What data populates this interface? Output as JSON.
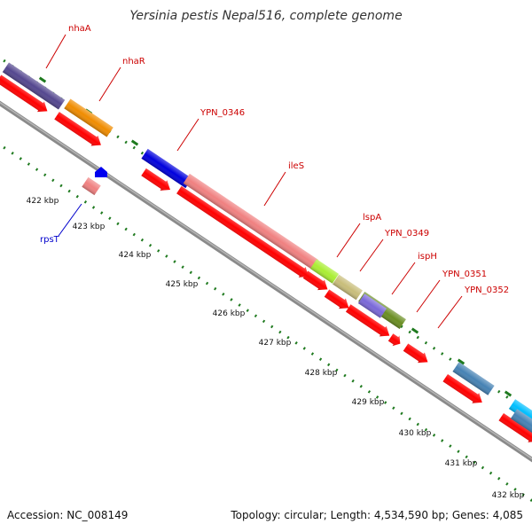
{
  "title": "Yersinia pestis Nepal516, complete genome",
  "accession": "Accession: NC_008149",
  "topology": "Topology: circular; Length: 4,534,590 bp; Genes: 4,085",
  "colors": {
    "backbone": "#8a8a8a",
    "dots": "#1f7a1f",
    "cds": "#ff0000",
    "label_top": "#cc0000",
    "label_bottom": "#0000cc"
  },
  "kbp_labels": [
    "422 kbp",
    "423 kbp",
    "424 kbp",
    "425 kbp",
    "426 kbp",
    "427 kbp",
    "428 kbp",
    "429 kbp",
    "430 kbp",
    "431 kbp",
    "432 kbp"
  ],
  "genes": [
    {
      "name": "nhaA",
      "color": "#54478f"
    },
    {
      "name": "nhaR",
      "color": "#f08c00"
    },
    {
      "name": "YPN_0346",
      "color": "#0000dd"
    },
    {
      "name": "ileS",
      "color": "#f08080"
    },
    {
      "name": "lspA",
      "color": "#aaee33"
    },
    {
      "name": "YPN_0349",
      "color": "#c8bd7a"
    },
    {
      "name": "ispH",
      "color": "#6a8e23"
    },
    {
      "name": "YPN_0351",
      "color": "#7a68d8"
    },
    {
      "name": "YPN_0352",
      "color": "#ff0000"
    },
    {
      "name": "rpsT",
      "color": "#f08080"
    }
  ],
  "other_genes": [
    "#4682b4",
    "#00bfff",
    "#4682b4"
  ]
}
